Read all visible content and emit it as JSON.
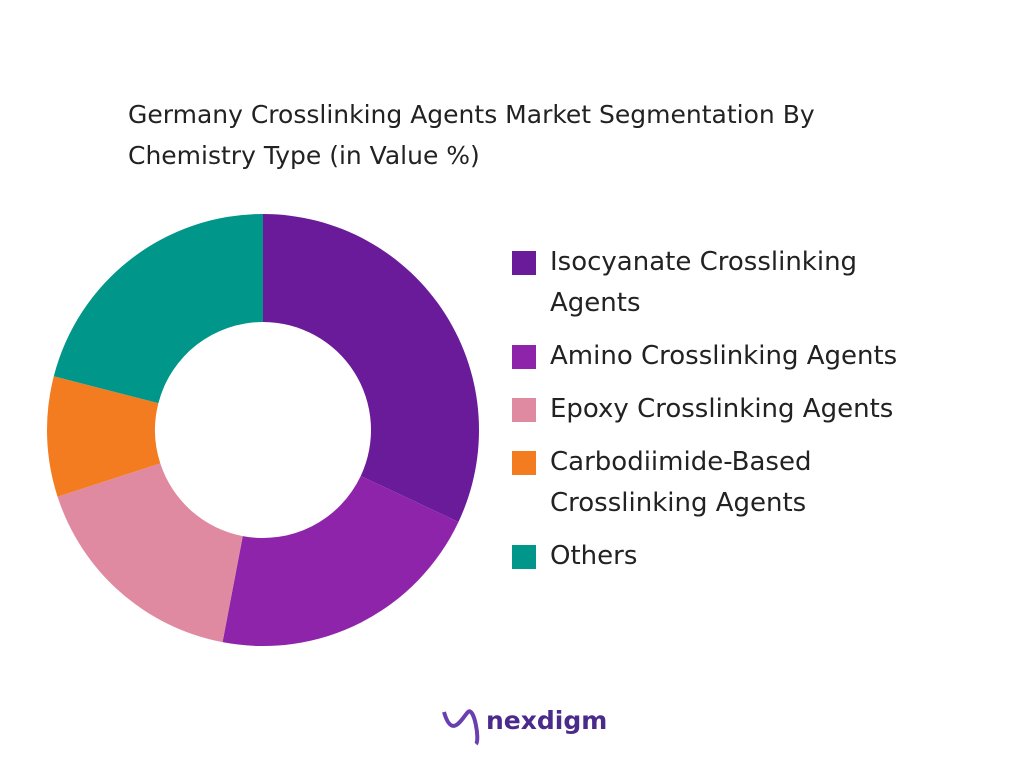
{
  "chart_data": {
    "type": "donut",
    "title": "Germany Crosslinking Agents Market Segmentation By Chemistry Type (in Value %)",
    "categories": [
      "Isocyanate Crosslinking Agents",
      "Amino Crosslinking Agents",
      "Epoxy Crosslinking Agents",
      "Carbodiimide-Based Crosslinking Agents",
      "Others"
    ],
    "values": [
      32,
      21,
      17,
      9,
      21
    ],
    "colors": [
      "#6a1b9a",
      "#8e24aa",
      "#e08aa2",
      "#f47c20",
      "#00968a"
    ],
    "legend": "right"
  },
  "brand": "nexdigm"
}
